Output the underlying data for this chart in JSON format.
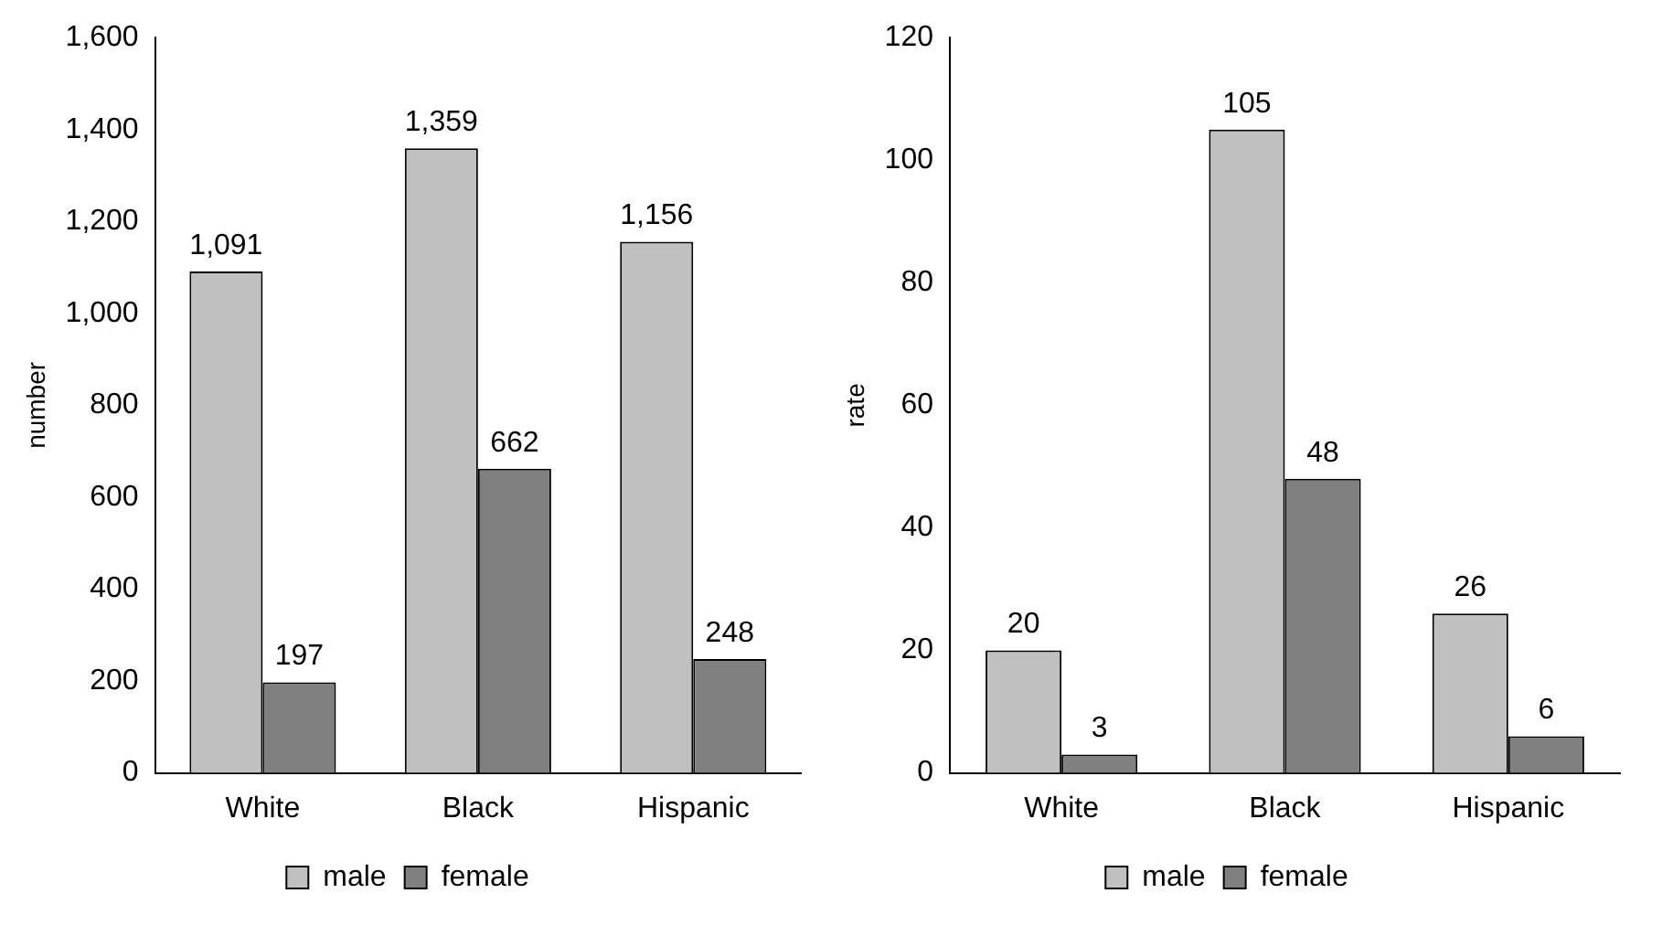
{
  "chart_data": [
    {
      "type": "bar",
      "ylabel": "number",
      "categories": [
        "White",
        "Black",
        "Hispanic"
      ],
      "series": [
        {
          "name": "male",
          "color": "#c0c0c0",
          "values": [
            1091,
            1359,
            1156
          ],
          "value_labels": [
            "1,091",
            "1,359",
            "1,156"
          ]
        },
        {
          "name": "female",
          "color": "#808080",
          "values": [
            197,
            662,
            248
          ],
          "value_labels": [
            "197",
            "662",
            "248"
          ]
        }
      ],
      "ylim": [
        0,
        1600
      ],
      "yticks": [
        0,
        200,
        400,
        600,
        800,
        {
          "value": 1000,
          "label": "1,000"
        },
        {
          "value": 1200,
          "label": "1,200"
        },
        {
          "value": 1400,
          "label": "1,400"
        },
        {
          "value": 1600,
          "label": "1,600"
        }
      ],
      "grid": false,
      "legend": "bottom"
    },
    {
      "type": "bar",
      "ylabel": "rate",
      "categories": [
        "White",
        "Black",
        "Hispanic"
      ],
      "series": [
        {
          "name": "male",
          "color": "#c0c0c0",
          "values": [
            20,
            105,
            26
          ]
        },
        {
          "name": "female",
          "color": "#808080",
          "values": [
            3,
            48,
            6
          ]
        }
      ],
      "ylim": [
        0,
        120
      ],
      "yticks": [
        0,
        20,
        40,
        60,
        80,
        100,
        120
      ],
      "grid": false,
      "legend": "bottom",
      "data_labels": true
    }
  ]
}
